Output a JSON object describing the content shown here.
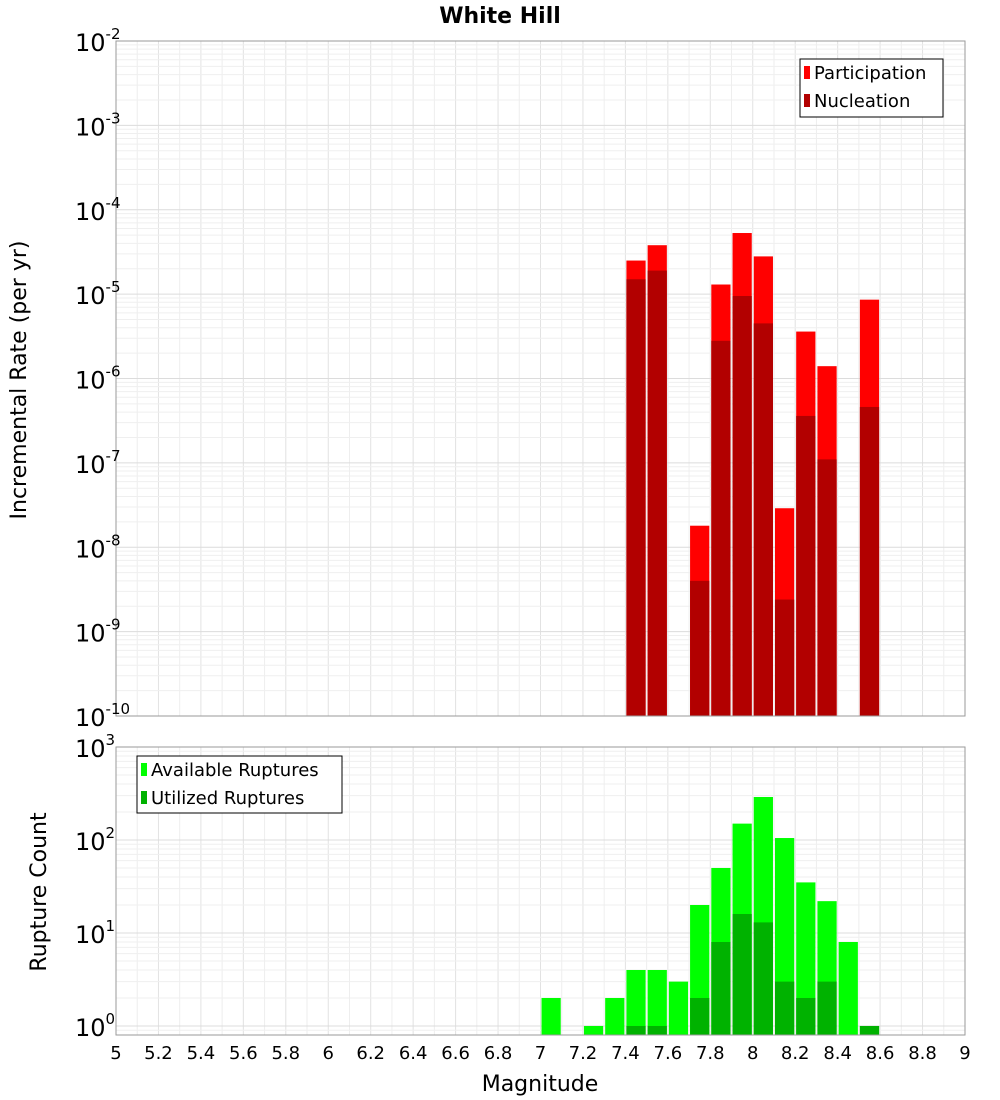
{
  "chart_data": [
    {
      "type": "bar",
      "title": "White Hill",
      "ylabel": "Incremental Rate (per yr)",
      "yscale": "log",
      "ylim": [
        1e-10,
        0.01
      ],
      "xlim": [
        5,
        9
      ],
      "grid": true,
      "legend_position": "top-right",
      "yticks": [
        {
          "base": "10",
          "exp": "-2"
        },
        {
          "base": "10",
          "exp": "-3"
        },
        {
          "base": "10",
          "exp": "-4"
        },
        {
          "base": "10",
          "exp": "-5"
        },
        {
          "base": "10",
          "exp": "-6"
        },
        {
          "base": "10",
          "exp": "-7"
        },
        {
          "base": "10",
          "exp": "-8"
        },
        {
          "base": "10",
          "exp": "-9"
        },
        {
          "base": "10",
          "exp": "-10"
        }
      ],
      "x": [
        7.45,
        7.55,
        7.75,
        7.85,
        7.95,
        8.05,
        8.15,
        8.25,
        8.35,
        8.55
      ],
      "series": [
        {
          "name": "Participation",
          "color": "#ff0000",
          "values": [
            2.5e-05,
            3.8e-05,
            1.8e-08,
            1.3e-05,
            5.3e-05,
            2.8e-05,
            2.9e-08,
            3.6e-06,
            1.4e-06,
            8.6e-06
          ]
        },
        {
          "name": "Nucleation",
          "color": "#b20000",
          "values": [
            1.5e-05,
            1.9e-05,
            4e-09,
            2.8e-06,
            9.5e-06,
            4.5e-06,
            2.4e-09,
            3.6e-07,
            1.1e-07,
            4.6e-07
          ]
        }
      ]
    },
    {
      "type": "bar",
      "title": "",
      "xlabel": "Magnitude",
      "ylabel": "Rupture Count",
      "yscale": "log",
      "ylim": [
        0.8,
        1000
      ],
      "xlim": [
        5,
        9
      ],
      "grid": true,
      "legend_position": "top-left",
      "yticks": [
        {
          "base": "10",
          "exp": "3"
        },
        {
          "base": "10",
          "exp": "2"
        },
        {
          "base": "10",
          "exp": "1"
        },
        {
          "base": "10",
          "exp": "0"
        }
      ],
      "xticks": [
        "5",
        "5.2",
        "5.4",
        "5.6",
        "5.8",
        "6",
        "6.2",
        "6.4",
        "6.6",
        "6.8",
        "7",
        "7.2",
        "7.4",
        "7.6",
        "7.8",
        "8",
        "8.2",
        "8.4",
        "8.6",
        "8.8",
        "9"
      ],
      "x": [
        7.05,
        7.25,
        7.35,
        7.45,
        7.55,
        7.65,
        7.75,
        7.85,
        7.95,
        8.05,
        8.15,
        8.25,
        8.35,
        8.45,
        8.55
      ],
      "series": [
        {
          "name": "Available Ruptures",
          "color": "#00ff00",
          "values": [
            2,
            1,
            2,
            4,
            4,
            3,
            20,
            50,
            150,
            290,
            105,
            35,
            22,
            8,
            1
          ]
        },
        {
          "name": "Utilized Ruptures",
          "color": "#00b200",
          "values": [
            0,
            0,
            0,
            1,
            1,
            0,
            2,
            8,
            16,
            13,
            3,
            2,
            3,
            0,
            1
          ]
        }
      ]
    }
  ]
}
